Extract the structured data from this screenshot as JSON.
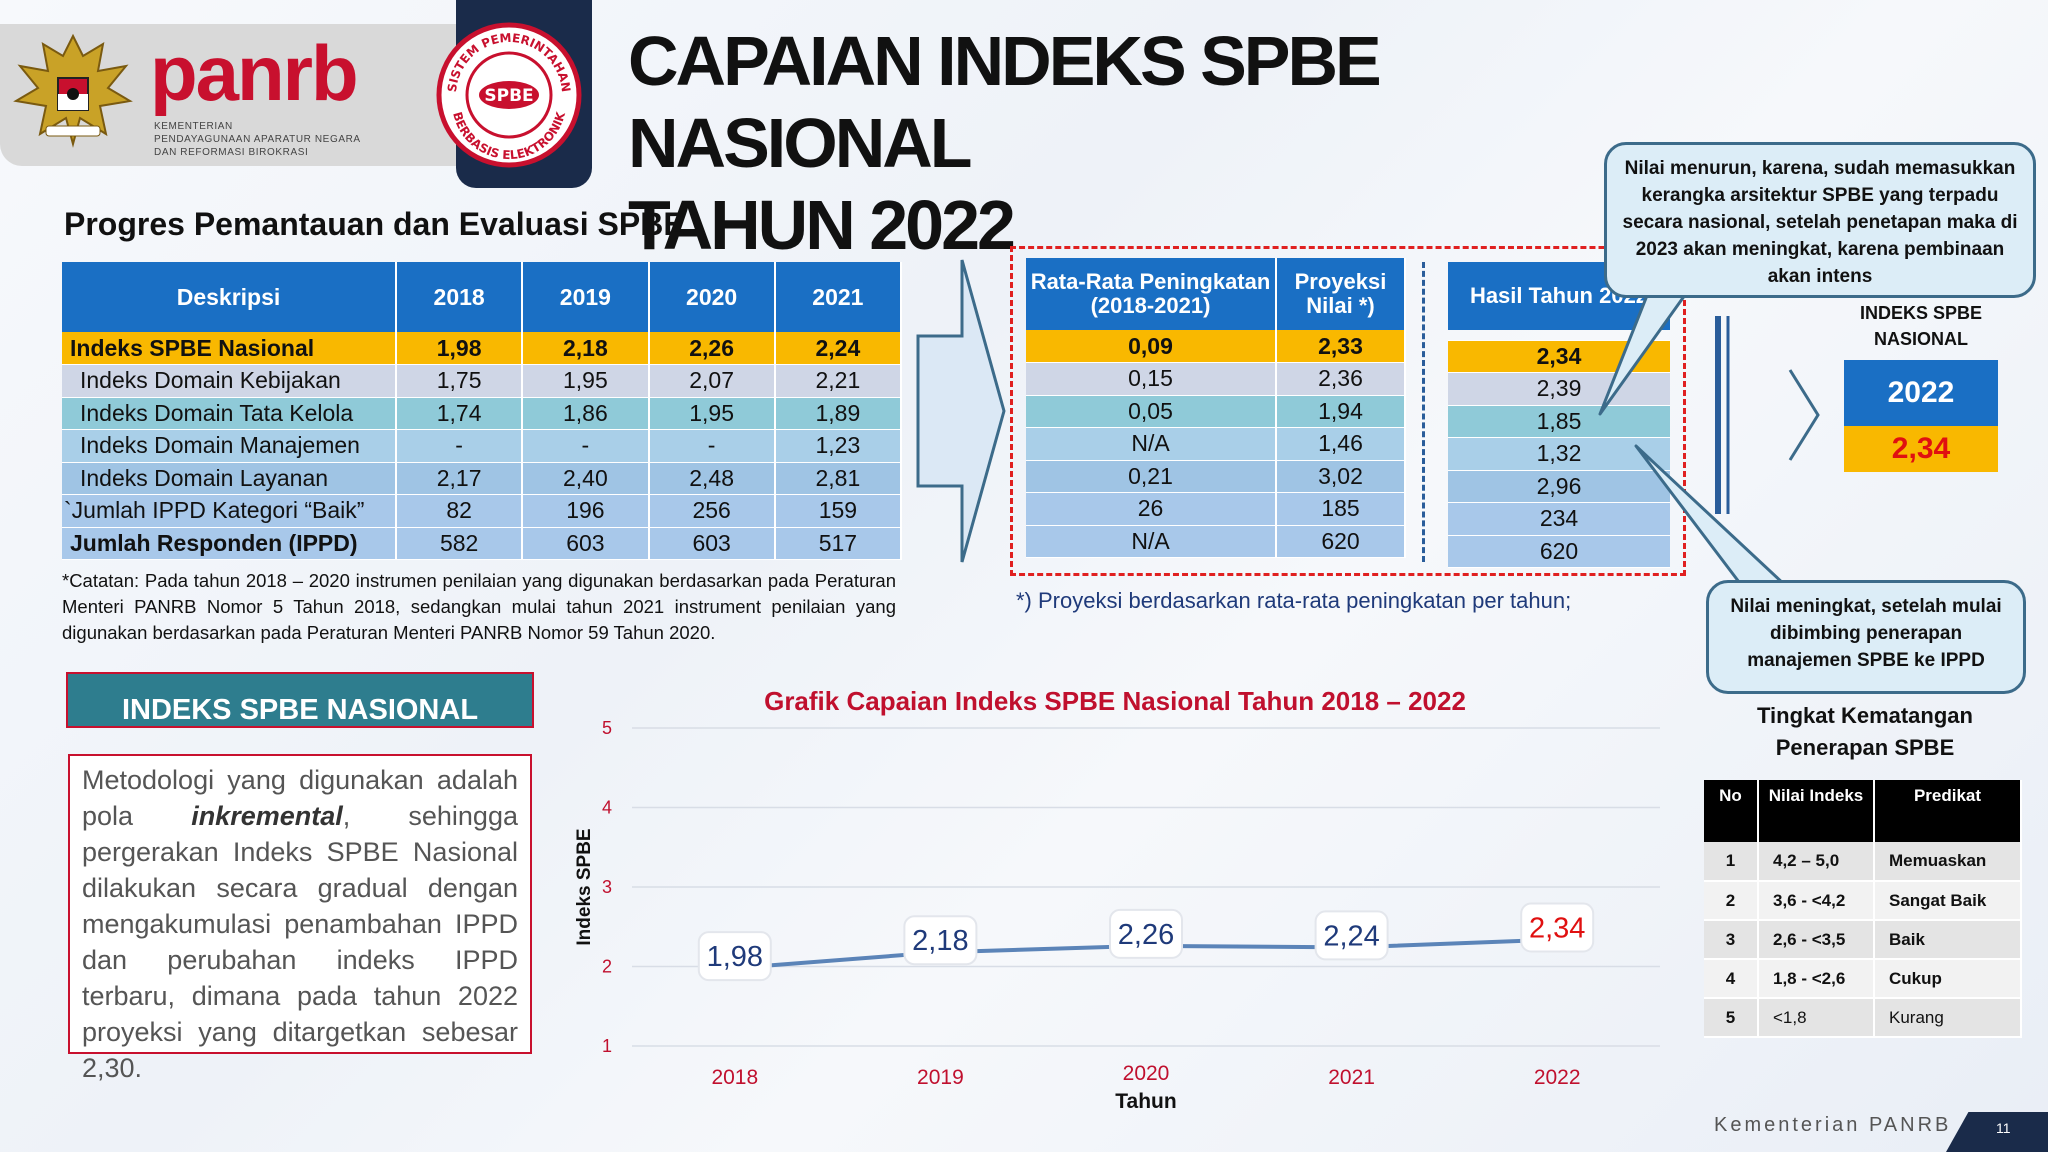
{
  "header": {
    "brand": "panrb",
    "ministry_lines": [
      "KEMENTERIAN",
      "PENDAYAGUNAAN APARATUR NEGARA",
      "DAN REFORMASI BIROKRASI"
    ],
    "seal_ring_top": "SISTEM PEMERINTAHAN",
    "seal_ring_bottom": "BERBASIS ELEKTRONIK",
    "seal_center": "SPBE",
    "title_line1": "CAPAIAN INDEKS SPBE NASIONAL",
    "title_line2": "TAHUN 2022"
  },
  "section_title": "Progres Pemantauan dan Evaluasi SPBE",
  "progress_table": {
    "headers": [
      "Deskripsi",
      "2018",
      "2019",
      "2020",
      "2021"
    ],
    "rows": [
      [
        "Indeks SPBE Nasional",
        "1,98",
        "2,18",
        "2,26",
        "2,24"
      ],
      [
        "Indeks Domain Kebijakan",
        "1,75",
        "1,95",
        "2,07",
        "2,21"
      ],
      [
        "Indeks Domain Tata Kelola",
        "1,74",
        "1,86",
        "1,95",
        "1,89"
      ],
      [
        "Indeks Domain Manajemen",
        "-",
        "-",
        "-",
        "1,23"
      ],
      [
        "Indeks Domain Layanan",
        "2,17",
        "2,40",
        "2,48",
        "2,81"
      ],
      [
        "`Jumlah IPPD Kategori “Baik”",
        "82",
        "196",
        "256",
        "159"
      ],
      [
        "Jumlah Responden (IPPD)",
        "582",
        "603",
        "603",
        "517"
      ]
    ]
  },
  "note": "*Catatan:  Pada tahun 2018 – 2020 instrumen penilaian yang digunakan berdasarkan pada Peraturan Menteri PANRB Nomor 5 Tahun 2018, sedangkan mulai tahun 2021 instrument penilaian yang digunakan berdasarkan pada Peraturan Menteri PANRB Nomor 59 Tahun 2020.",
  "projection_table": {
    "headers": [
      "Rata-Rata Peningkatan (2018-2021)",
      "Proyeksi Nilai *)"
    ],
    "rows": [
      [
        "0,09",
        "2,33"
      ],
      [
        "0,15",
        "2,36"
      ],
      [
        "0,05",
        "1,94"
      ],
      [
        "N/A",
        "1,46"
      ],
      [
        "0,21",
        "3,02"
      ],
      [
        "26",
        "185"
      ],
      [
        "N/A",
        "620"
      ]
    ]
  },
  "result_table": {
    "header": "Hasil Tahun 2022",
    "rows": [
      "2,34",
      "2,39",
      "1,85",
      "1,32",
      "2,96",
      "234",
      "620"
    ]
  },
  "projection_note": "*) Proyeksi berdasarkan rata-rata peningkatan per tahun;",
  "callout_top": "Nilai menurun, karena, sudah memasukkan kerangka arsitektur SPBE yang terpadu secara nasional, setelah penetapan maka di 2023 akan meningkat, karena pembinaan akan intens",
  "callout_bottom": "Nilai meningkat, setelah mulai dibimbing penerapan manajemen SPBE ke IPPD",
  "index_card": {
    "title": "INDEKS SPBE NASIONAL",
    "year": "2022",
    "value": "2,34"
  },
  "info_box": {
    "header": "INDEKS SPBE NASIONAL",
    "text_before": "Metodologi yang digunakan adalah pola ",
    "text_emphasis": "inkremental",
    "text_after": ", sehingga pergerakan Indeks SPBE Nasional dilakukan secara gradual dengan mengakumulasi penambahan IPPD dan perubahan indeks IPPD terbaru, dimana pada tahun 2022 proyeksi yang ditargetkan sebesar 2,30."
  },
  "chart_data": {
    "type": "line",
    "title": "Grafik Capaian Indeks SPBE Nasional Tahun 2018 – 2022",
    "xlabel": "Tahun",
    "ylabel": "Indeks SPBE",
    "categories": [
      "2018",
      "2019",
      "2020",
      "2021",
      "2022"
    ],
    "values": [
      1.98,
      2.18,
      2.26,
      2.24,
      2.34
    ],
    "data_labels": [
      "1,98",
      "2,18",
      "2,26",
      "2,24",
      "2,34"
    ],
    "ylim": [
      1,
      5
    ],
    "yticks": [
      "1",
      "2",
      "3",
      "4",
      "5"
    ],
    "grid": true,
    "line_color": "#5b84b8",
    "tick_color": "#c0102e",
    "label_color": "#1f3a7a",
    "highlight_label_color": "#e01010"
  },
  "maturity": {
    "title": "Tingkat Kematangan Penerapan SPBE",
    "headers": [
      "No",
      "Nilai Indeks",
      "Predikat"
    ],
    "rows": [
      [
        "1",
        "4,2 – 5,0",
        "Memuaskan"
      ],
      [
        "2",
        "3,6 - <4,2",
        "Sangat Baik"
      ],
      [
        "3",
        "2,6 - <3,5",
        "Baik"
      ],
      [
        "4",
        "1,8 - <2,6",
        "Cukup"
      ],
      [
        "5",
        "<1,8",
        "Kurang"
      ]
    ]
  },
  "footer": {
    "org": "Kementerian PANRB",
    "page": "11"
  }
}
